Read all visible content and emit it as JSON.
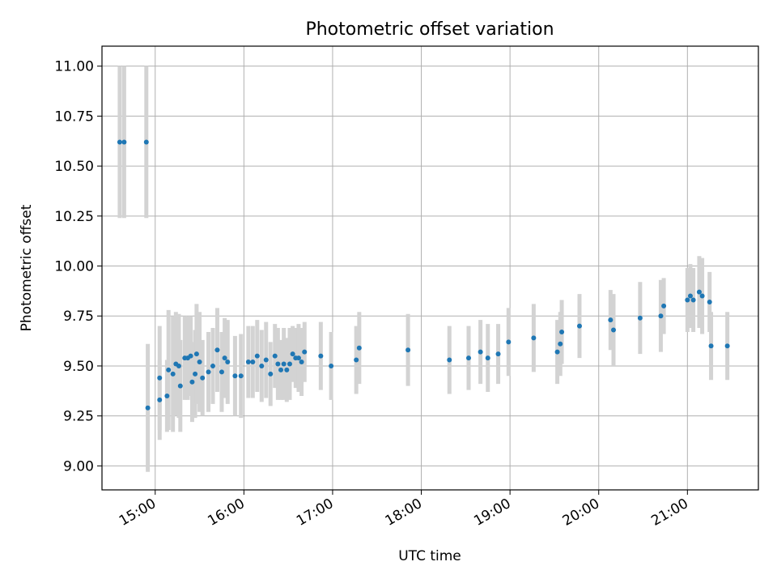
{
  "chart_data": {
    "type": "scatter",
    "title": "Photometric offset variation",
    "xlabel": "UTC time",
    "ylabel": "Photometric offset",
    "xlim": [
      "14:24",
      "21:48"
    ],
    "ylim": [
      8.88,
      11.1
    ],
    "x_ticks": [
      "15:00",
      "16:00",
      "17:00",
      "18:00",
      "19:00",
      "20:00",
      "21:00"
    ],
    "y_ticks": [
      "9.00",
      "9.25",
      "9.50",
      "9.75",
      "10.00",
      "10.25",
      "10.50",
      "10.75",
      "11.00"
    ],
    "grid": true,
    "colors": {
      "point": "#1f77b4",
      "error_bar": "#d3d3d3",
      "grid": "#b0b0b0"
    },
    "series": [
      {
        "x": [
          "14:36",
          "14:39",
          "14:54",
          "14:55",
          "15:03",
          "15:03",
          "15:08",
          "15:09",
          "15:12",
          "15:14",
          "15:16",
          "15:17",
          "15:20",
          "15:22",
          "15:24",
          "15:25",
          "15:27",
          "15:28",
          "15:30",
          "15:32",
          "15:36",
          "15:39",
          "15:42",
          "15:45",
          "15:47",
          "15:49",
          "15:54",
          "15:58",
          "16:03",
          "16:06",
          "16:09",
          "16:12",
          "16:15",
          "16:18",
          "16:21",
          "16:23",
          "16:25",
          "16:27",
          "16:29",
          "16:31",
          "16:33",
          "16:35",
          "16:37",
          "16:39",
          "16:41",
          "16:52",
          "16:59",
          "17:16",
          "17:18",
          "17:51",
          "18:19",
          "18:32",
          "18:40",
          "18:45",
          "18:52",
          "18:59",
          "19:16",
          "19:32",
          "19:34",
          "19:35",
          "19:47",
          "20:08",
          "20:10",
          "20:28",
          "20:42",
          "20:44",
          "21:00",
          "21:02",
          "21:04",
          "21:08",
          "21:10",
          "21:15",
          "21:16",
          "21:27"
        ],
        "y": [
          10.62,
          10.62,
          10.62,
          9.29,
          9.33,
          9.44,
          9.35,
          9.48,
          9.46,
          9.51,
          9.5,
          9.4,
          9.54,
          9.54,
          9.55,
          9.42,
          9.46,
          9.56,
          9.52,
          9.44,
          9.47,
          9.5,
          9.58,
          9.47,
          9.54,
          9.52,
          9.45,
          9.45,
          9.52,
          9.52,
          9.55,
          9.5,
          9.53,
          9.46,
          9.55,
          9.51,
          9.48,
          9.51,
          9.48,
          9.51,
          9.56,
          9.54,
          9.54,
          9.52,
          9.57,
          9.55,
          9.5,
          9.53,
          9.59,
          9.58,
          9.53,
          9.54,
          9.57,
          9.54,
          9.56,
          9.62,
          9.64,
          9.57,
          9.61,
          9.67,
          9.7,
          9.73,
          9.68,
          9.74,
          9.75,
          9.8,
          9.83,
          9.85,
          9.83,
          9.87,
          9.85,
          9.82,
          9.6,
          9.6
        ],
        "yerr": [
          0.38,
          0.38,
          0.38,
          0.32,
          0.2,
          0.26,
          0.18,
          0.3,
          0.29,
          0.26,
          0.26,
          0.23,
          0.21,
          0.21,
          0.2,
          0.2,
          0.22,
          0.25,
          0.25,
          0.19,
          0.2,
          0.19,
          0.21,
          0.2,
          0.2,
          0.21,
          0.2,
          0.21,
          0.18,
          0.18,
          0.18,
          0.18,
          0.19,
          0.16,
          0.16,
          0.18,
          0.15,
          0.18,
          0.16,
          0.18,
          0.14,
          0.15,
          0.17,
          0.17,
          0.15,
          0.17,
          0.17,
          0.17,
          0.18,
          0.18,
          0.17,
          0.16,
          0.16,
          0.17,
          0.15,
          0.17,
          0.17,
          0.16,
          0.16,
          0.16,
          0.16,
          0.15,
          0.18,
          0.18,
          0.18,
          0.14,
          0.16,
          0.16,
          0.16,
          0.18,
          0.19,
          0.15,
          0.17,
          0.17
        ]
      }
    ]
  }
}
